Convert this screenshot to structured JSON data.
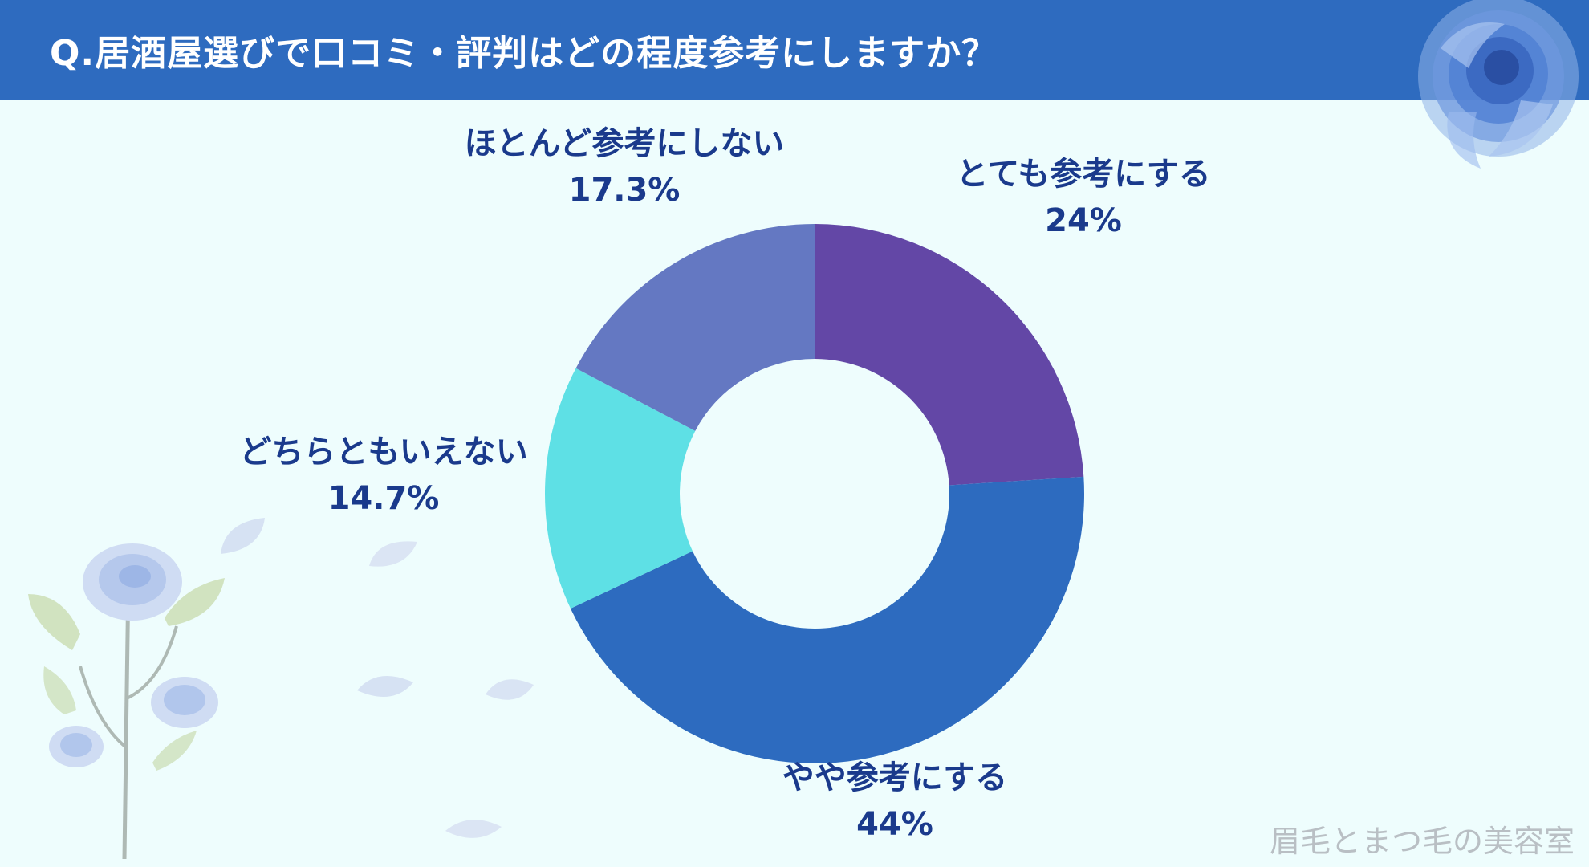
{
  "title": "Q.居酒屋選びで口コミ・評判はどの程度参考にしますか？",
  "watermark": "眉毛とまつ毛の美容室",
  "chart_data": {
    "type": "pie",
    "title": "Q.居酒屋選びで口コミ・評判はどの程度参考にしますか？",
    "donut": true,
    "start": "top, clockwise",
    "categories": [
      "とても参考にする",
      "やや参考にする",
      "どちらともいえない",
      "ほとんど参考にしない"
    ],
    "values": [
      24,
      44,
      14.7,
      17.3
    ],
    "value_labels": [
      "24%",
      "44%",
      "14.7%",
      "17.3%"
    ],
    "colors": [
      "#6347a6",
      "#2d6bbf",
      "#5ee0e5",
      "#6478c2"
    ]
  }
}
